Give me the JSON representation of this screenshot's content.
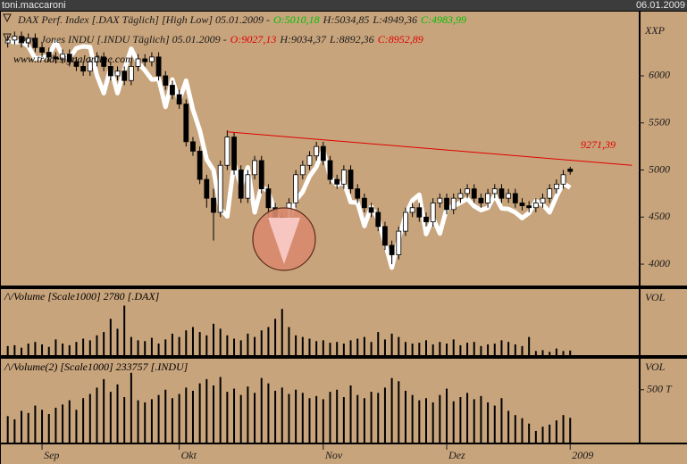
{
  "user": "toni.maccaroni",
  "date": "06.01.2009",
  "chart_data": [
    {
      "type": "candlestick",
      "title_parts": [
        "DAX Perf. Index [.DAX  Täglich] [High Low] 05.01.2009 -",
        "O:5010,18",
        "H:5034,85",
        "L:4949,36",
        "C:4983,99"
      ],
      "title_colors": [
        "#1a1a1a",
        "#00c000",
        "#1a1a1a",
        "#1a1a1a",
        "#00c000"
      ],
      "overlay_title_parts": [
        "Dow Jones INDU [.INDU  Täglich] 05.01.2009 -",
        "O:9027,13",
        "H:9034,37",
        "L:8892,36",
        "C:8952,89"
      ],
      "overlay_title_colors": [
        "#1a1a1a",
        "#e00000",
        "#1a1a1a",
        "#1a1a1a",
        "#e00000"
      ],
      "watermark": "www.tradesignalonline.com",
      "axis_label": "XXP",
      "categories": [
        null,
        null,
        null,
        null,
        null,
        "Sep",
        null,
        null,
        null,
        null,
        null,
        null,
        null,
        null,
        null,
        null,
        null,
        null,
        null,
        null,
        null,
        null,
        null,
        null,
        null,
        "Okt",
        null,
        null,
        null,
        null,
        null,
        null,
        null,
        null,
        null,
        null,
        null,
        null,
        null,
        null,
        null,
        null,
        null,
        null,
        null,
        null,
        "Nov",
        null,
        null,
        null,
        null,
        null,
        null,
        null,
        null,
        null,
        null,
        null,
        null,
        null,
        null,
        null,
        null,
        null,
        "Dez",
        null,
        null,
        null,
        null,
        null,
        null,
        null,
        null,
        null,
        null,
        null,
        null,
        null,
        null,
        null,
        null,
        null,
        "2009"
      ],
      "open": [
        6350,
        6380,
        6420,
        6350,
        6400,
        6300,
        6250,
        6200,
        6180,
        6230,
        6150,
        6100,
        6050,
        6150,
        6200,
        6100,
        6000,
        6050,
        5950,
        6100,
        6180,
        6150,
        6200,
        6000,
        5900,
        5800,
        5700,
        5300,
        5200,
        4900,
        4700,
        4550,
        5050,
        5350,
        5000,
        4700,
        4950,
        5100,
        4800,
        4600,
        4500,
        4450,
        4650,
        4950,
        5050,
        5150,
        5250,
        5100,
        4900,
        4850,
        5000,
        4800,
        4700,
        4600,
        4550,
        4400,
        4200,
        4100,
        4350,
        4550,
        4600,
        4500,
        4450,
        4650,
        4700,
        4580,
        4700,
        4750,
        4800,
        4700,
        4650,
        4750,
        4800,
        4700,
        4750,
        4650,
        4620,
        4600,
        4650,
        4700,
        4800,
        4850,
        5010.18
      ],
      "high": [
        6430,
        6470,
        6470,
        6450,
        6450,
        6350,
        6300,
        6250,
        6280,
        6280,
        6200,
        6150,
        6200,
        6250,
        6250,
        6150,
        6100,
        6100,
        6150,
        6230,
        6230,
        6250,
        6250,
        6050,
        5950,
        5850,
        5750,
        5350,
        5250,
        4950,
        4800,
        5100,
        5420,
        5400,
        5050,
        5000,
        5150,
        5150,
        4850,
        4650,
        4550,
        4700,
        5000,
        5100,
        5200,
        5300,
        5300,
        5150,
        4950,
        5050,
        5050,
        4850,
        4750,
        4650,
        4600,
        4450,
        4250,
        4400,
        4600,
        4650,
        4650,
        4550,
        4700,
        4750,
        4750,
        4750,
        4800,
        4850,
        4850,
        4750,
        4800,
        4850,
        4850,
        4800,
        4800,
        4700,
        4670,
        4700,
        4750,
        4850,
        4900,
        5000,
        5034.85
      ],
      "low": [
        6300,
        6330,
        6300,
        6300,
        6250,
        6200,
        6150,
        6130,
        6130,
        6100,
        6050,
        6000,
        6000,
        6100,
        6050,
        5950,
        5950,
        5900,
        5900,
        6050,
        6100,
        6100,
        5950,
        5850,
        5750,
        5650,
        5250,
        5150,
        4850,
        4600,
        4250,
        4500,
        5000,
        4950,
        4650,
        4650,
        4900,
        4750,
        4450,
        4400,
        4400,
        4400,
        4600,
        4900,
        5000,
        5100,
        5050,
        4850,
        4800,
        4800,
        4750,
        4650,
        4550,
        4500,
        4350,
        4150,
        4000,
        4050,
        4300,
        4500,
        4450,
        4400,
        4400,
        4600,
        4530,
        4530,
        4650,
        4700,
        4650,
        4600,
        4600,
        4700,
        4650,
        4650,
        4600,
        4570,
        4550,
        4550,
        4600,
        4650,
        4750,
        4800,
        4949.36
      ],
      "close": [
        6380,
        6420,
        6350,
        6400,
        6300,
        6250,
        6200,
        6180,
        6230,
        6150,
        6100,
        6050,
        6150,
        6200,
        6100,
        6000,
        6050,
        5950,
        6100,
        6180,
        6150,
        6200,
        6000,
        5900,
        5800,
        5700,
        5300,
        5200,
        4900,
        4700,
        4550,
        5050,
        5350,
        5000,
        4700,
        4950,
        5100,
        4800,
        4600,
        4500,
        4450,
        4650,
        4950,
        5050,
        5150,
        5250,
        5100,
        4900,
        4850,
        5000,
        4800,
        4700,
        4600,
        4550,
        4400,
        4200,
        4100,
        4350,
        4550,
        4600,
        4500,
        4450,
        4650,
        4700,
        4580,
        4700,
        4750,
        4800,
        4700,
        4650,
        4750,
        4800,
        4700,
        4750,
        4650,
        4620,
        4600,
        4650,
        4700,
        4800,
        4850,
        4950,
        4983.99
      ],
      "overlay": {
        "color": "#ffffff",
        "axis": "y2",
        "values": [
          11540,
          11500,
          11520,
          11430,
          11220,
          11230,
          11270,
          11510,
          11270,
          11230,
          11400,
          11430,
          11420,
          10920,
          10610,
          11060,
          10610,
          11020,
          11390,
          11150,
          11010,
          10850,
          10860,
          10370,
          10850,
          10480,
          10830,
          10320,
          9960,
          9450,
          9260,
          8580,
          8450,
          9390,
          8980,
          9310,
          8520,
          8980,
          8880,
          8520,
          8180,
          8380,
          8730,
          8880,
          9150,
          9320,
          9620,
          9140,
          9000,
          9050,
          8700,
          8690,
          8280,
          8620,
          8400,
          7990,
          7550,
          8050,
          8480,
          8730,
          8830,
          8140,
          8420,
          8150,
          8590,
          8630,
          8690,
          8760,
          8630,
          8560,
          8600,
          8820,
          8590,
          8580,
          8520,
          8420,
          8510,
          8720,
          8660,
          8520,
          8800,
          9030,
          8952.89
        ]
      },
      "trendline": {
        "color": "#e00000",
        "x": [
          32,
          91
        ],
        "values": [
          5405,
          5050
        ],
        "label": "9271,39"
      },
      "xlim": [
        -1,
        92
      ],
      "ylim": [
        3773,
        6682
      ],
      "yticks": [
        4000,
        4500,
        5000,
        5500,
        6000
      ],
      "y2lim": [
        7237,
        12041
      ]
    },
    {
      "type": "bar",
      "title": "/\\/Volume [Scale1000] 2780 [.DAX]",
      "axis_label": "VOL",
      "color": "#000000",
      "values": [
        5500,
        6000,
        4500,
        7000,
        8000,
        6500,
        5000,
        9500,
        7000,
        6000,
        8000,
        10000,
        9000,
        12000,
        14000,
        22000,
        16000,
        30000,
        11000,
        9000,
        8500,
        10500,
        7000,
        9500,
        13000,
        11000,
        15000,
        17000,
        14000,
        12000,
        19000,
        16000,
        12000,
        10000,
        9000,
        13000,
        11000,
        15000,
        17000,
        22000,
        28000,
        17000,
        12000,
        11000,
        10000,
        8500,
        9000,
        7500,
        8000,
        7000,
        9000,
        10000,
        11000,
        8000,
        14000,
        9500,
        13000,
        11000,
        8000,
        7000,
        7500,
        9000,
        6500,
        8000,
        7000,
        9500,
        6000,
        7500,
        8000,
        5500,
        6500,
        7000,
        9000,
        8000,
        6500,
        5500,
        11000,
        2500,
        3000,
        2000,
        4000,
        2500,
        2780
      ],
      "ylim": [
        0,
        40000
      ]
    },
    {
      "type": "bar",
      "title": "/\\/Volume(2) [Scale1000] 233757 [.INDU]",
      "axis_label": "VOL",
      "color": "#000000",
      "values": [
        250,
        220,
        300,
        280,
        350,
        310,
        270,
        330,
        360,
        400,
        310,
        420,
        460,
        520,
        600,
        480,
        550,
        430,
        660,
        400,
        380,
        410,
        450,
        500,
        420,
        460,
        520,
        490,
        560,
        600,
        540,
        620,
        480,
        510,
        450,
        530,
        470,
        610,
        560,
        490,
        520,
        460,
        500,
        470,
        420,
        440,
        410,
        480,
        500,
        430,
        540,
        450,
        420,
        480,
        470,
        520,
        610,
        580,
        490,
        450,
        400,
        420,
        380,
        450,
        510,
        390,
        430,
        470,
        410,
        440,
        380,
        350,
        420,
        300,
        260,
        230,
        180,
        110,
        150,
        170,
        210,
        260,
        234
      ],
      "ylim": [
        0,
        793
      ],
      "yticks": [
        {
          "value": 500,
          "label": "500 T"
        }
      ]
    }
  ]
}
